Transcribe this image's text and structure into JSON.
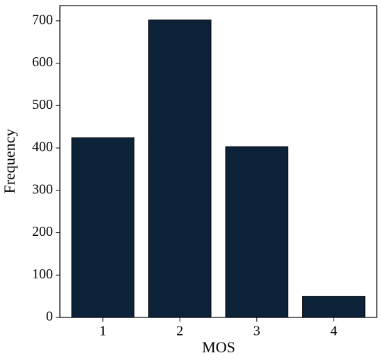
{
  "chart_data": {
    "type": "bar",
    "xlabel": "MOS",
    "ylabel": "Frequency",
    "categories": [
      "1",
      "2",
      "3",
      "4"
    ],
    "values": [
      424,
      702,
      403,
      50
    ],
    "color": "#0b2239",
    "ylim": [
      0,
      736
    ],
    "yticks": [
      0,
      100,
      200,
      300,
      400,
      500,
      600,
      700
    ],
    "grid": false
  }
}
